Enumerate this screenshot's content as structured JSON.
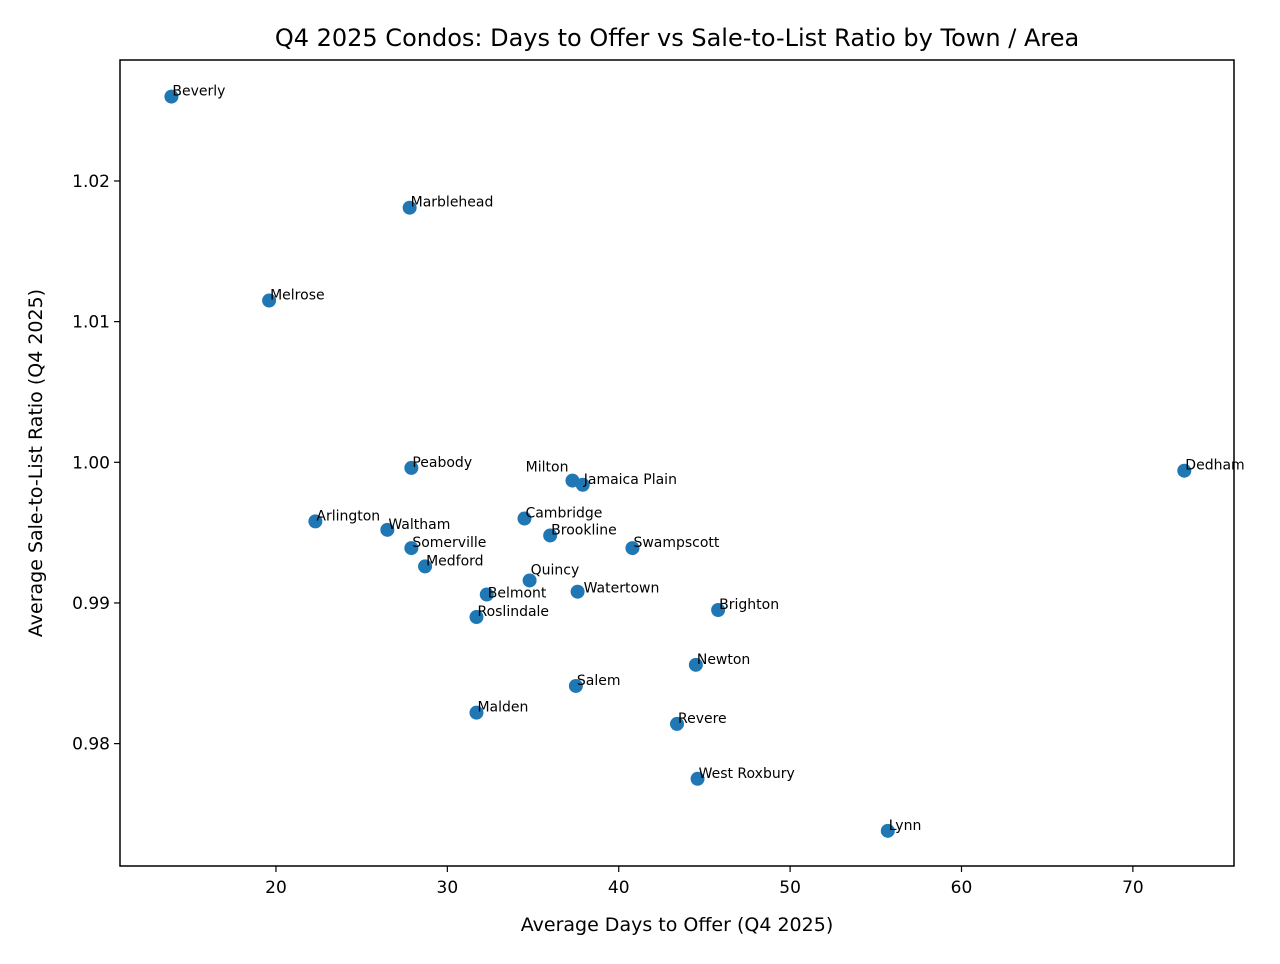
{
  "chart_data": {
    "type": "scatter",
    "title": "Q4 2025 Condos: Days to Offer vs Sale-to-List Ratio by Town / Area",
    "xlabel": "Average Days to Offer (Q4 2025)",
    "ylabel": "Average Sale-to-List Ratio (Q4 2025)",
    "xlim": [
      10.9,
      75.9
    ],
    "ylim": [
      0.9713,
      1.0286
    ],
    "xticks": [
      20,
      30,
      40,
      50,
      60,
      70
    ],
    "yticks": [
      0.98,
      0.99,
      1.0,
      1.01,
      1.02
    ],
    "xtick_labels": [
      "20",
      "30",
      "40",
      "50",
      "60",
      "70"
    ],
    "ytick_labels": [
      "0.98",
      "0.99",
      "1.00",
      "1.01",
      "1.02"
    ],
    "grid": false,
    "marker_color": "#1f77b4",
    "points": [
      {
        "label": "Beverly",
        "x": 13.9,
        "y": 1.026
      },
      {
        "label": "Marblehead",
        "x": 27.8,
        "y": 1.0181
      },
      {
        "label": "Melrose",
        "x": 19.6,
        "y": 1.0115
      },
      {
        "label": "Peabody",
        "x": 27.9,
        "y": 0.9996
      },
      {
        "label": "Dedham",
        "x": 73.0,
        "y": 0.9994
      },
      {
        "label": "Milton",
        "x": 37.3,
        "y": 0.9987
      },
      {
        "label": "Jamaica Plain",
        "x": 37.9,
        "y": 0.9984
      },
      {
        "label": "Arlington",
        "x": 22.3,
        "y": 0.9958
      },
      {
        "label": "Waltham",
        "x": 26.5,
        "y": 0.9952
      },
      {
        "label": "Cambridge",
        "x": 34.5,
        "y": 0.996
      },
      {
        "label": "Brookline",
        "x": 36.0,
        "y": 0.9948
      },
      {
        "label": "Swampscott",
        "x": 40.8,
        "y": 0.9939
      },
      {
        "label": "Somerville",
        "x": 27.9,
        "y": 0.9939
      },
      {
        "label": "Medford",
        "x": 28.7,
        "y": 0.9926
      },
      {
        "label": "Quincy",
        "x": 34.8,
        "y": 0.9916
      },
      {
        "label": "Belmont",
        "x": 32.3,
        "y": 0.9906
      },
      {
        "label": "Watertown",
        "x": 37.6,
        "y": 0.9908
      },
      {
        "label": "Brighton",
        "x": 45.8,
        "y": 0.9895
      },
      {
        "label": "Roslindale",
        "x": 31.7,
        "y": 0.989
      },
      {
        "label": "Newton",
        "x": 44.5,
        "y": 0.9856
      },
      {
        "label": "Salem",
        "x": 37.5,
        "y": 0.9841
      },
      {
        "label": "Malden",
        "x": 31.7,
        "y": 0.9822
      },
      {
        "label": "Revere",
        "x": 43.4,
        "y": 0.9814
      },
      {
        "label": "West Roxbury",
        "x": 44.6,
        "y": 0.9775
      },
      {
        "label": "Lynn",
        "x": 55.7,
        "y": 0.9738
      }
    ]
  }
}
